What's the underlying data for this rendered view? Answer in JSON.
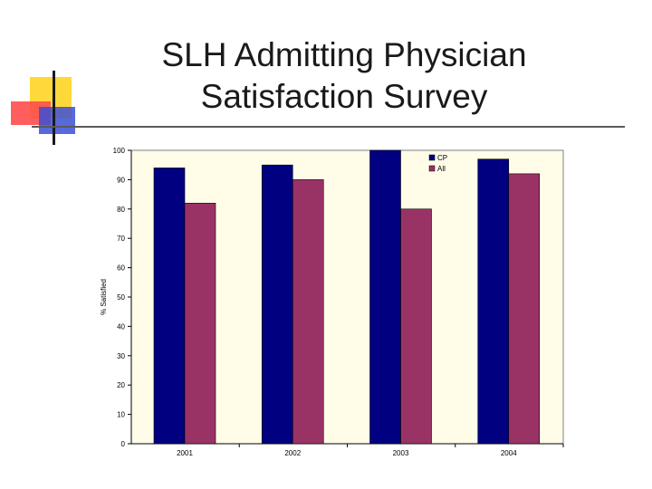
{
  "title_line1": "SLH Admitting Physician",
  "title_line2": "Satisfaction Survey",
  "chart_data": {
    "type": "bar",
    "title": "",
    "xlabel": "",
    "ylabel": "% Satisfied",
    "ylim": [
      0,
      100
    ],
    "yticks": [
      0,
      10,
      20,
      30,
      40,
      50,
      60,
      70,
      80,
      90,
      100
    ],
    "categories": [
      "2001",
      "2002",
      "2003",
      "2004"
    ],
    "series": [
      {
        "name": "CP",
        "color": "#000080",
        "values": [
          94,
          95,
          100,
          97
        ]
      },
      {
        "name": "All",
        "color": "#993366",
        "values": [
          82,
          90,
          80,
          92
        ]
      }
    ],
    "legend_position": "top-right",
    "plot_background": "#fffde8"
  }
}
